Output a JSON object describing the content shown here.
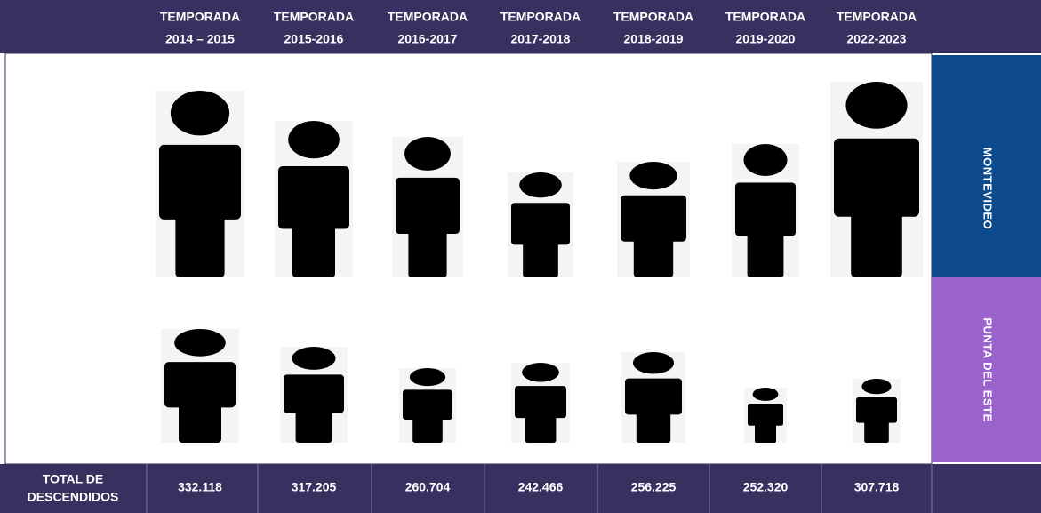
{
  "header": {
    "columns": [
      {
        "line1": "TEMPORADA",
        "line2": "2014 – 2015"
      },
      {
        "line1": "TEMPORADA",
        "line2": "2015-2016"
      },
      {
        "line1": "TEMPORADA",
        "line2": "2016-2017"
      },
      {
        "line1": "TEMPORADA",
        "line2": "2017-2018"
      },
      {
        "line1": "TEMPORADA",
        "line2": "2018-2019"
      },
      {
        "line1": "TEMPORADA",
        "line2": "2019-2020"
      },
      {
        "line1": "TEMPORADA",
        "line2": "2022-2023"
      }
    ]
  },
  "rows": [
    "MONTEVIDEO",
    "PUNTA DEL ESTE"
  ],
  "total": {
    "label": [
      "TOTAL DE",
      "DESCENDIDOS"
    ],
    "values": [
      "332.118",
      "317.205",
      "260.704",
      "242.466",
      "256.225",
      "252.320",
      "307.718"
    ]
  }
}
